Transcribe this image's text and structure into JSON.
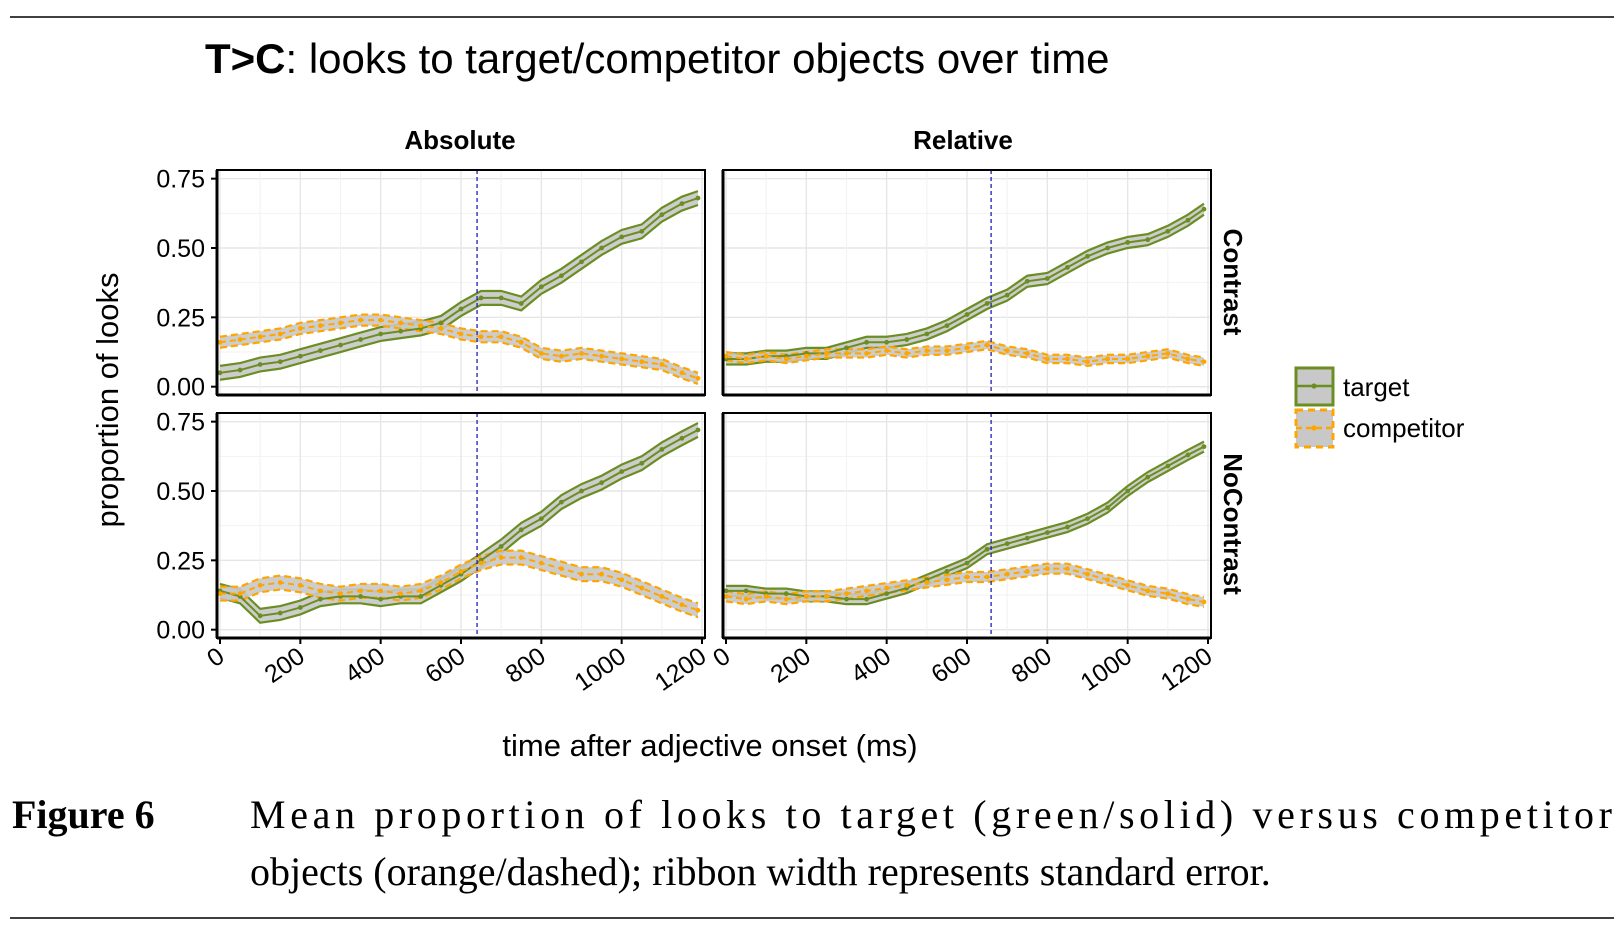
{
  "title": {
    "bold": "T>C",
    "rest": ": looks to target/competitor objects over time"
  },
  "caption": {
    "label": "Figure 6",
    "line1": "Mean proportion of looks to target (green/solid) versus competitor",
    "line2": "objects (orange/dashed); ribbon width represents standard error."
  },
  "colors": {
    "target": "#6b8e23",
    "competitor": "#ffa500",
    "ribbon": "#c8c8c8",
    "vline": "#1f1fb4",
    "grid": "#e6e6e6"
  },
  "chart_data": {
    "type": "line",
    "title": "T>C: looks to target/competitor objects over time",
    "xlabel": "time after adjective onset (ms)",
    "ylabel": "proportion of looks",
    "xlim": [
      0,
      1200
    ],
    "ylim": [
      -0.03,
      0.75
    ],
    "x_ticks": [
      "0",
      "200",
      "400",
      "600",
      "800",
      "1000",
      "1200"
    ],
    "y_ticks": [
      "0.00",
      "0.25",
      "0.50",
      "0.75"
    ],
    "grid": true,
    "legend_position": "right",
    "legend": [
      {
        "name": "target",
        "style": "solid green line with grey ribbon"
      },
      {
        "name": "competitor",
        "style": "dashed orange line with grey ribbon"
      }
    ],
    "column_facets": [
      "Absolute",
      "Relative"
    ],
    "row_facets": [
      "Contrast",
      "NoContrast"
    ],
    "panels": [
      {
        "col": "Absolute",
        "row": "Contrast",
        "vline_x": 640,
        "series": [
          {
            "name": "target",
            "ribbon_halfwidth": 0.025,
            "x": [
              0,
              50,
              100,
              150,
              200,
              250,
              300,
              350,
              400,
              450,
              500,
              550,
              600,
              650,
              700,
              750,
              800,
              850,
              900,
              950,
              1000,
              1050,
              1100,
              1150,
              1190
            ],
            "y": [
              0.05,
              0.06,
              0.08,
              0.09,
              0.11,
              0.13,
              0.15,
              0.17,
              0.19,
              0.2,
              0.21,
              0.23,
              0.28,
              0.32,
              0.32,
              0.3,
              0.36,
              0.4,
              0.45,
              0.5,
              0.54,
              0.56,
              0.62,
              0.66,
              0.68
            ]
          },
          {
            "name": "competitor",
            "ribbon_halfwidth": 0.02,
            "x": [
              0,
              50,
              100,
              150,
              200,
              250,
              300,
              350,
              400,
              450,
              500,
              550,
              600,
              650,
              700,
              750,
              800,
              850,
              900,
              950,
              1000,
              1050,
              1100,
              1150,
              1190
            ],
            "y": [
              0.16,
              0.17,
              0.18,
              0.19,
              0.21,
              0.22,
              0.23,
              0.24,
              0.24,
              0.23,
              0.22,
              0.21,
              0.19,
              0.18,
              0.18,
              0.16,
              0.12,
              0.11,
              0.12,
              0.11,
              0.1,
              0.09,
              0.08,
              0.05,
              0.03
            ]
          }
        ]
      },
      {
        "col": "Relative",
        "row": "Contrast",
        "vline_x": 660,
        "series": [
          {
            "name": "target",
            "ribbon_halfwidth": 0.02,
            "x": [
              0,
              50,
              100,
              150,
              200,
              250,
              300,
              350,
              400,
              450,
              500,
              550,
              600,
              650,
              700,
              750,
              800,
              850,
              900,
              950,
              1000,
              1050,
              1100,
              1150,
              1190
            ],
            "y": [
              0.1,
              0.1,
              0.11,
              0.11,
              0.12,
              0.12,
              0.14,
              0.16,
              0.16,
              0.17,
              0.19,
              0.22,
              0.26,
              0.3,
              0.33,
              0.38,
              0.39,
              0.43,
              0.47,
              0.5,
              0.52,
              0.53,
              0.56,
              0.6,
              0.64
            ]
          },
          {
            "name": "competitor",
            "ribbon_halfwidth": 0.015,
            "x": [
              0,
              50,
              100,
              150,
              200,
              250,
              300,
              350,
              400,
              450,
              500,
              550,
              600,
              650,
              700,
              750,
              800,
              850,
              900,
              950,
              1000,
              1050,
              1100,
              1150,
              1190
            ],
            "y": [
              0.11,
              0.1,
              0.11,
              0.1,
              0.11,
              0.12,
              0.12,
              0.12,
              0.13,
              0.12,
              0.13,
              0.13,
              0.14,
              0.15,
              0.13,
              0.12,
              0.1,
              0.1,
              0.09,
              0.1,
              0.1,
              0.11,
              0.12,
              0.1,
              0.09
            ]
          }
        ]
      },
      {
        "col": "Absolute",
        "row": "NoContrast",
        "vline_x": 640,
        "series": [
          {
            "name": "target",
            "ribbon_halfwidth": 0.025,
            "x": [
              0,
              50,
              100,
              150,
              200,
              250,
              300,
              350,
              400,
              450,
              500,
              550,
              600,
              650,
              700,
              750,
              800,
              850,
              900,
              950,
              1000,
              1050,
              1100,
              1150,
              1190
            ],
            "y": [
              0.14,
              0.12,
              0.05,
              0.06,
              0.08,
              0.11,
              0.12,
              0.12,
              0.11,
              0.12,
              0.12,
              0.16,
              0.2,
              0.25,
              0.3,
              0.36,
              0.4,
              0.46,
              0.5,
              0.53,
              0.57,
              0.6,
              0.65,
              0.69,
              0.72
            ]
          },
          {
            "name": "competitor",
            "ribbon_halfwidth": 0.025,
            "x": [
              0,
              50,
              100,
              150,
              200,
              250,
              300,
              350,
              400,
              450,
              500,
              550,
              600,
              650,
              700,
              750,
              800,
              850,
              900,
              950,
              1000,
              1050,
              1100,
              1150,
              1190
            ],
            "y": [
              0.13,
              0.13,
              0.16,
              0.17,
              0.16,
              0.14,
              0.13,
              0.14,
              0.14,
              0.13,
              0.14,
              0.17,
              0.21,
              0.24,
              0.26,
              0.26,
              0.24,
              0.22,
              0.2,
              0.2,
              0.18,
              0.15,
              0.12,
              0.09,
              0.07
            ]
          }
        ]
      },
      {
        "col": "Relative",
        "row": "NoContrast",
        "vline_x": 660,
        "series": [
          {
            "name": "target",
            "ribbon_halfwidth": 0.018,
            "x": [
              0,
              50,
              100,
              150,
              200,
              250,
              300,
              350,
              400,
              450,
              500,
              550,
              600,
              650,
              700,
              750,
              800,
              850,
              900,
              950,
              1000,
              1050,
              1100,
              1150,
              1190
            ],
            "y": [
              0.14,
              0.14,
              0.13,
              0.13,
              0.12,
              0.12,
              0.11,
              0.11,
              0.13,
              0.15,
              0.18,
              0.21,
              0.24,
              0.29,
              0.31,
              0.33,
              0.35,
              0.37,
              0.4,
              0.44,
              0.5,
              0.55,
              0.59,
              0.63,
              0.66
            ]
          },
          {
            "name": "competitor",
            "ribbon_halfwidth": 0.018,
            "x": [
              0,
              50,
              100,
              150,
              200,
              250,
              300,
              350,
              400,
              450,
              500,
              550,
              600,
              650,
              700,
              750,
              800,
              850,
              900,
              950,
              1000,
              1050,
              1100,
              1150,
              1190
            ],
            "y": [
              0.12,
              0.11,
              0.12,
              0.11,
              0.12,
              0.12,
              0.13,
              0.14,
              0.15,
              0.16,
              0.17,
              0.18,
              0.19,
              0.19,
              0.2,
              0.21,
              0.22,
              0.22,
              0.2,
              0.18,
              0.16,
              0.14,
              0.13,
              0.11,
              0.1
            ]
          }
        ]
      }
    ]
  }
}
